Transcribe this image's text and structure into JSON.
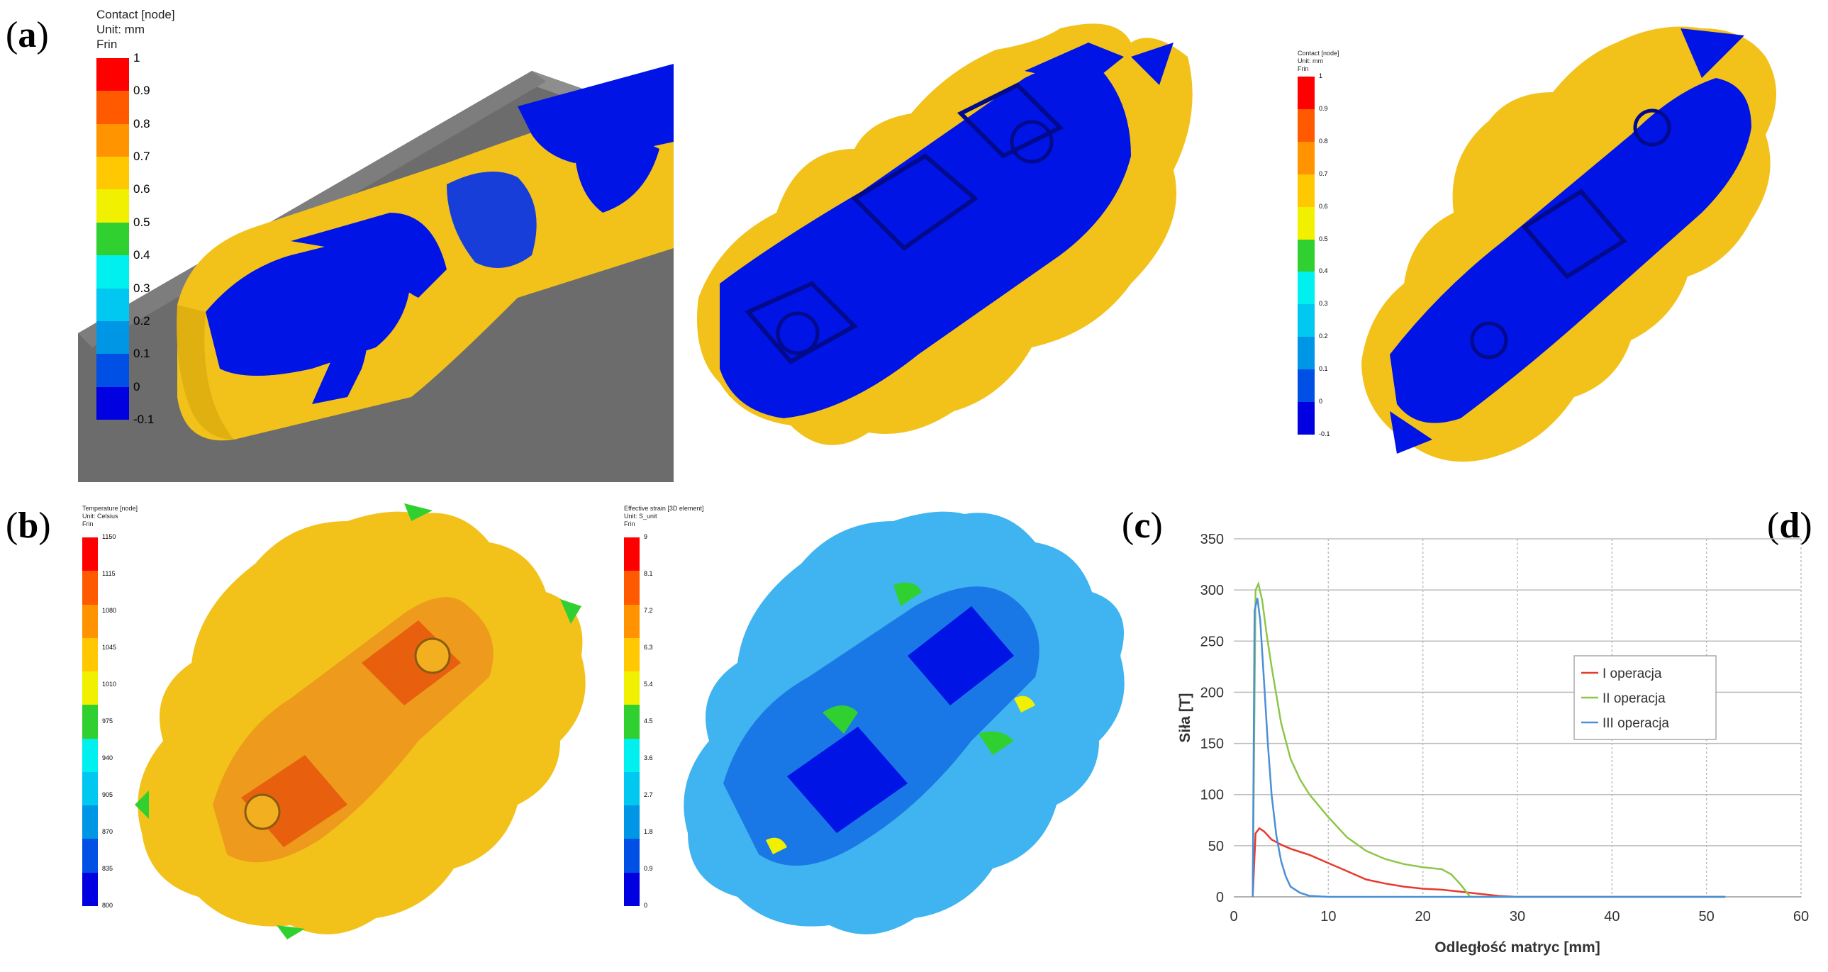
{
  "panel_labels": {
    "a": "a",
    "b": "b",
    "c": "c",
    "d": "d"
  },
  "legend_contact_large": {
    "header": [
      "Contact [node]",
      "Unit: mm",
      "Frin"
    ],
    "ticks": [
      "1",
      "0.9",
      "0.8",
      "0.7",
      "0.6",
      "0.5",
      "0.4",
      "0.3",
      "0.2",
      "0.1",
      "0",
      "-0.1"
    ]
  },
  "legend_contact_small": {
    "header": [
      "Contact [node]",
      "Unit: mm",
      "Frin"
    ],
    "ticks": [
      "1",
      "0.9",
      "0.8",
      "0.7",
      "0.6",
      "0.5",
      "0.4",
      "0.3",
      "0.2",
      "0.1",
      "0",
      "-0.1"
    ]
  },
  "legend_temperature": {
    "header": [
      "Temperature [node]",
      "Unit: Celsius",
      "Frin"
    ],
    "ticks": [
      "1150",
      "1115",
      "1080",
      "1045",
      "1010",
      "975",
      "940",
      "905",
      "870",
      "835",
      "800"
    ]
  },
  "legend_strain": {
    "header": [
      "Effective strain [3D element]",
      "Unit: S_unit",
      "Frin"
    ],
    "ticks": [
      "9",
      "8.1",
      "7.2",
      "6.3",
      "5.4",
      "4.5",
      "3.6",
      "2.7",
      "1.8",
      "0.9",
      "0"
    ]
  },
  "colors": {
    "scale": [
      "#ff0000",
      "#ff5a00",
      "#ff9400",
      "#ffc800",
      "#f0f000",
      "#30d030",
      "#00f0f0",
      "#00c8f0",
      "#0096e6",
      "#0050e6",
      "#0000e0"
    ],
    "deep_blue": "#0014e6",
    "yellow_surface": "#f2c21a",
    "gray_die": "#6c6c6c"
  },
  "chart_data": {
    "type": "line",
    "xlabel": "Odległość matryc [mm]",
    "ylabel": "Siła [T]",
    "xlim": [
      0,
      60
    ],
    "ylim": [
      0,
      350
    ],
    "xticks": [
      0,
      10,
      20,
      30,
      40,
      50,
      60
    ],
    "yticks": [
      0,
      50,
      100,
      150,
      200,
      250,
      300,
      350
    ],
    "grid": "horizontal and vertical",
    "legend_position": "center-right",
    "series": [
      {
        "name": "I operacja",
        "color": "#e8392e",
        "x": [
          2,
          2.3,
          2.7,
          3.2,
          4,
          5,
          6,
          7,
          8,
          10,
          12,
          14,
          16,
          18,
          20,
          22,
          24,
          26,
          28,
          30,
          40,
          52
        ],
        "y": [
          0,
          62,
          67,
          64,
          56,
          51,
          47,
          44,
          41,
          33,
          25,
          17,
          13,
          10,
          8,
          7,
          5,
          3,
          1,
          0,
          0,
          0
        ]
      },
      {
        "name": "II operacja",
        "color": "#8ec64a",
        "x": [
          2,
          2.3,
          2.6,
          3,
          3.5,
          4,
          5,
          6,
          7,
          8,
          10,
          12,
          14,
          16,
          18,
          20,
          22,
          23,
          24,
          25,
          30,
          52
        ],
        "y": [
          0,
          300,
          306,
          290,
          255,
          225,
          170,
          135,
          115,
          100,
          78,
          58,
          45,
          37,
          32,
          29,
          27,
          22,
          12,
          0,
          0,
          0
        ]
      },
      {
        "name": "III operacja",
        "color": "#4a8fd8",
        "x": [
          2,
          2.2,
          2.5,
          2.8,
          3.2,
          3.6,
          4,
          4.5,
          5,
          5.5,
          6,
          7,
          8,
          10,
          20,
          30,
          40,
          52
        ],
        "y": [
          0,
          280,
          292,
          270,
          210,
          150,
          100,
          60,
          35,
          20,
          10,
          4,
          1,
          0,
          0,
          0,
          0,
          0
        ]
      }
    ]
  }
}
